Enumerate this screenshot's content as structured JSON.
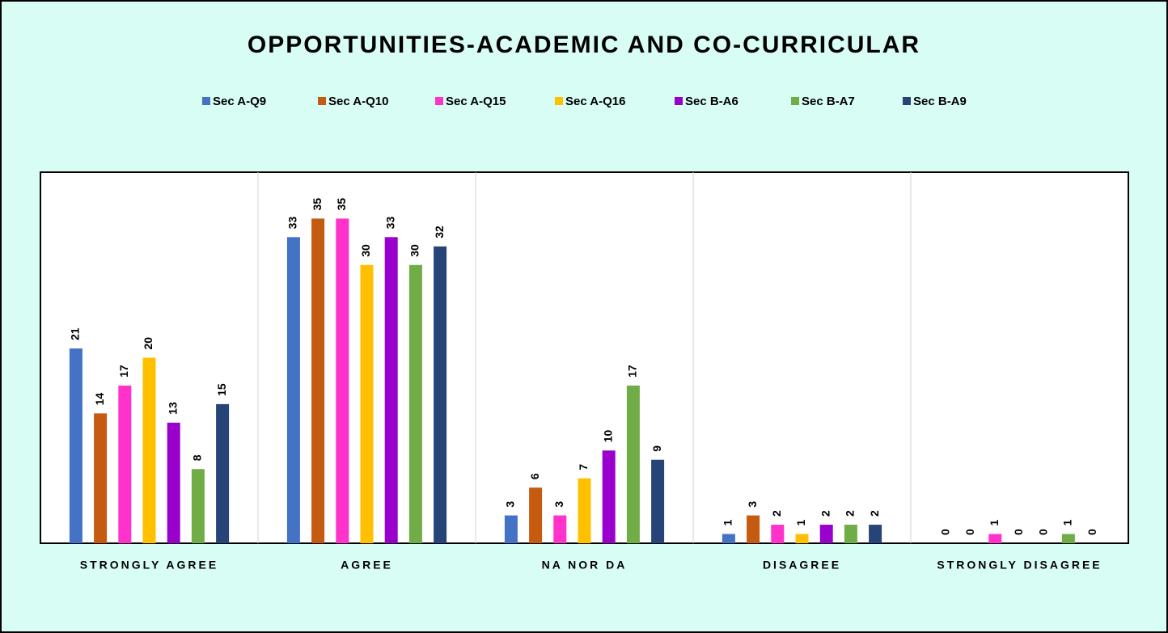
{
  "chart_data": {
    "type": "bar",
    "title": "OPPORTUNITIES-ACADEMIC AND CO-CURRICULAR",
    "categories": [
      "STRONGLY AGREE",
      "AGREE",
      "NA NOR DA",
      "DISAGREE",
      "STRONGLY DISAGREE"
    ],
    "series": [
      {
        "name": "Sec A-Q9",
        "color": "#4472c4",
        "values": [
          21,
          33,
          3,
          1,
          0
        ]
      },
      {
        "name": "Sec A-Q10",
        "color": "#c55a11",
        "values": [
          14,
          35,
          6,
          3,
          0
        ]
      },
      {
        "name": "Sec A-Q15",
        "color": "#ff33cc",
        "values": [
          17,
          35,
          3,
          2,
          1
        ]
      },
      {
        "name": "Sec A-Q16",
        "color": "#ffc000",
        "values": [
          20,
          30,
          7,
          1,
          0
        ]
      },
      {
        "name": "Sec B-A6",
        "color": "#9900cc",
        "values": [
          13,
          33,
          10,
          2,
          0
        ]
      },
      {
        "name": "Sec B-A7",
        "color": "#70ad47",
        "values": [
          8,
          30,
          17,
          2,
          1
        ]
      },
      {
        "name": "Sec B-A9",
        "color": "#264478",
        "values": [
          15,
          32,
          9,
          2,
          0
        ]
      }
    ],
    "ylim": [
      0,
      40
    ],
    "legend": "top"
  }
}
